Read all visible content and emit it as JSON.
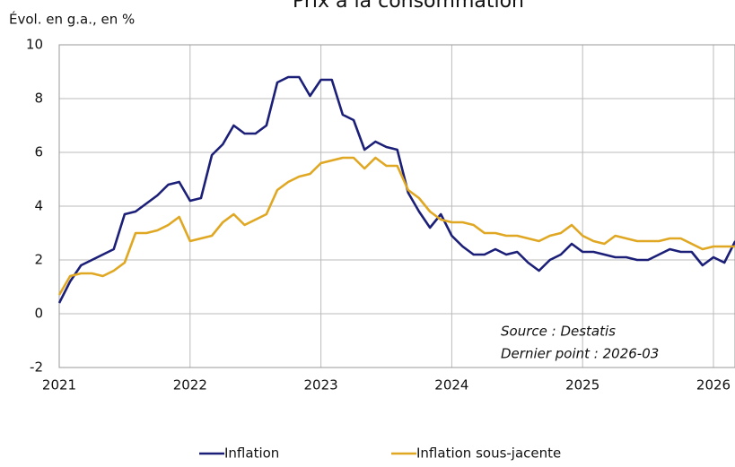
{
  "chart_data": {
    "type": "line",
    "title": "Prix à la consommation",
    "y_label": "Évol. en g.a., en %",
    "annotations": [
      "Source : Destatis",
      "Dernier point :   2026-03"
    ],
    "categories": [
      "2021",
      null,
      null,
      null,
      null,
      null,
      null,
      null,
      null,
      null,
      null,
      null,
      "2022",
      null,
      null,
      null,
      null,
      null,
      null,
      null,
      null,
      null,
      null,
      null,
      "2023",
      null,
      null,
      null,
      null,
      null,
      null,
      null,
      null,
      null,
      null,
      null,
      "2024",
      null,
      null,
      null,
      null,
      null,
      null,
      null,
      null,
      null,
      null,
      null,
      "2025",
      null,
      null,
      null,
      null,
      null,
      null,
      null,
      null,
      null,
      null,
      null,
      "2026",
      null,
      null
    ],
    "series": [
      {
        "name": "Inflation",
        "color": "#1b1f78",
        "values": [
          0.4,
          1.2,
          1.8,
          2.0,
          2.2,
          2.4,
          3.7,
          3.8,
          4.1,
          4.4,
          4.8,
          4.9,
          4.2,
          4.3,
          5.9,
          6.3,
          7.0,
          6.7,
          6.7,
          7.0,
          8.6,
          8.8,
          8.8,
          8.1,
          8.7,
          8.7,
          7.4,
          7.2,
          6.1,
          6.4,
          6.2,
          6.1,
          4.5,
          3.8,
          3.2,
          3.7,
          2.9,
          2.5,
          2.2,
          2.2,
          2.4,
          2.2,
          2.3,
          1.9,
          1.6,
          2.0,
          2.2,
          2.6,
          2.3,
          2.3,
          2.2,
          2.1,
          2.1,
          2.0,
          2.0,
          2.2,
          2.4,
          2.3,
          2.3,
          1.8,
          2.1,
          1.9,
          2.7
        ]
      },
      {
        "name": "Inflation sous-jacente",
        "color": "#e0a722",
        "values": [
          0.7,
          1.4,
          1.5,
          1.5,
          1.4,
          1.6,
          1.9,
          3.0,
          3.0,
          3.1,
          3.3,
          3.6,
          2.7,
          2.8,
          2.9,
          3.4,
          3.7,
          3.3,
          3.5,
          3.7,
          4.6,
          4.9,
          5.1,
          5.2,
          5.6,
          5.7,
          5.8,
          5.8,
          5.4,
          5.8,
          5.5,
          5.5,
          4.6,
          4.3,
          3.8,
          3.5,
          3.4,
          3.4,
          3.3,
          3.0,
          3.0,
          2.9,
          2.9,
          2.8,
          2.7,
          2.9,
          3.0,
          3.3,
          2.9,
          2.7,
          2.6,
          2.9,
          2.8,
          2.7,
          2.7,
          2.7,
          2.8,
          2.8,
          2.6,
          2.4,
          2.5,
          2.5,
          2.5
        ]
      }
    ],
    "ylim": [
      -2,
      10
    ],
    "yticks": [
      -2,
      0,
      2,
      4,
      6,
      8,
      10
    ],
    "grid": true,
    "legend": "bottom"
  }
}
